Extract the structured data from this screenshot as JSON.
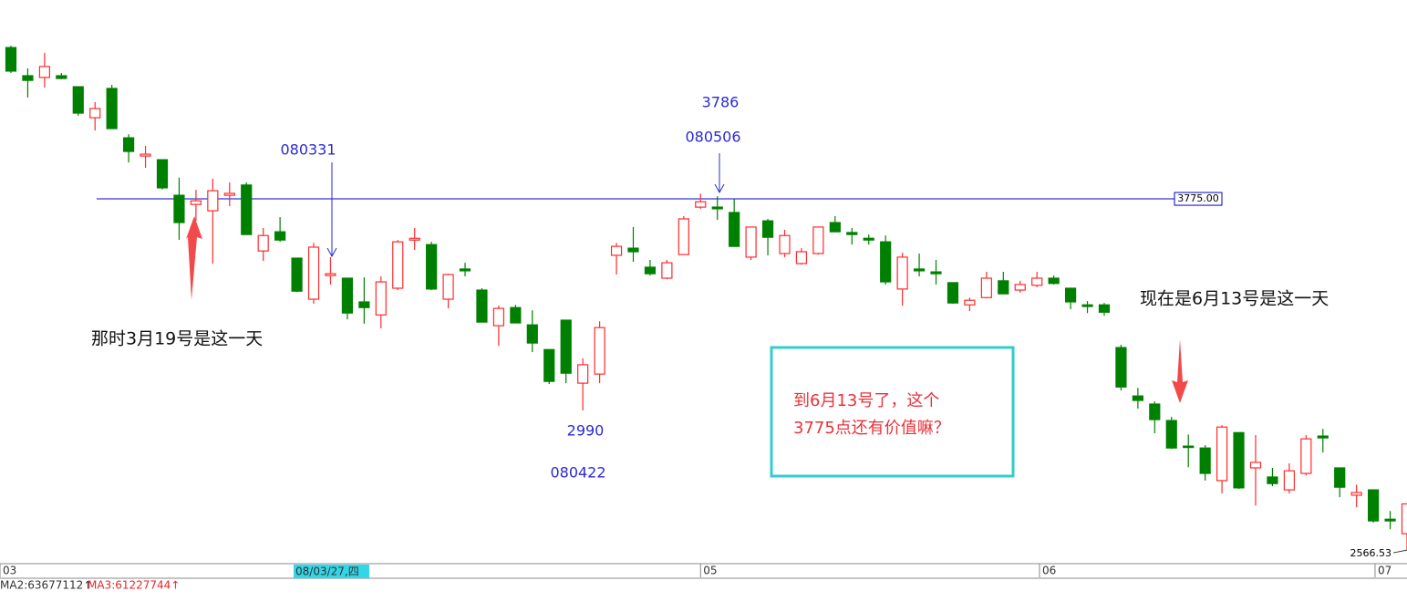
{
  "chart_data": {
    "type": "candlestick",
    "log_scale": true,
    "xlim": [
      -0.65,
      83
    ],
    "ylim": [
      2536,
      4697
    ],
    "xticks": [
      {
        "value": -0.65,
        "label": "03"
      },
      {
        "value": 41,
        "label": "05"
      },
      {
        "value": 61.15,
        "label": "06"
      },
      {
        "value": 81.1,
        "label": "07"
      }
    ],
    "up_color": "#ff2a2a",
    "down_color": "#008000",
    "open": [
      4458,
      4322,
      4314,
      4322,
      4270,
      4127,
      4262,
      4037,
      3957,
      3941,
      3790,
      3752,
      3726,
      3790,
      3833,
      3565,
      3641,
      3537,
      3381,
      3470,
      3460,
      3371,
      3323,
      3422,
      3608,
      3590,
      3381,
      3495,
      3415,
      3284,
      3350,
      3287,
      3199,
      3304,
      3083,
      3114,
      3548,
      3576,
      3502,
      3460,
      3551,
      3741,
      3741,
      3719,
      3541,
      3685,
      3555,
      3516,
      3555,
      3678,
      3638,
      3615,
      3601,
      3419,
      3495,
      3484,
      3443,
      3360,
      3387,
      3450,
      3415,
      3433,
      3460,
      3422,
      3360,
      3360,
      3206,
      3040,
      3013,
      2959,
      2877,
      2871,
      2770,
      2920,
      2809,
      2781,
      2742,
      2792,
      2909,
      2809,
      2726,
      2742,
      2655,
      2613
    ],
    "high": [
      4467,
      4357,
      4432,
      4335,
      4270,
      4199,
      4279,
      4053,
      4001,
      3941,
      3864,
      3813,
      3860,
      3844,
      3844,
      3656,
      3700,
      3537,
      3597,
      3541,
      3460,
      3463,
      3467,
      3608,
      3656,
      3601,
      3477,
      3519,
      3422,
      3357,
      3360,
      3340,
      3199,
      3304,
      3168,
      3300,
      3597,
      3660,
      3530,
      3530,
      3704,
      3797,
      3786,
      3775,
      3660,
      3693,
      3649,
      3576,
      3660,
      3704,
      3656,
      3630,
      3626,
      3558,
      3555,
      3530,
      3443,
      3387,
      3484,
      3484,
      3450,
      3484,
      3470,
      3422,
      3374,
      3367,
      3216,
      3067,
      3022,
      2971,
      2914,
      2880,
      2944,
      2920,
      2912,
      2809,
      2823,
      2912,
      2932,
      2809,
      2758,
      2742,
      2679,
      2700
    ],
    "low": [
      4335,
      4220,
      4266,
      4305,
      4136,
      4070,
      4078,
      3929,
      3906,
      3814,
      3609,
      3685,
      3516,
      3745,
      3630,
      3526,
      3601,
      3408,
      3364,
      3436,
      3307,
      3291,
      3274,
      3415,
      3569,
      3415,
      3347,
      3467,
      3297,
      3212,
      3294,
      3190,
      3080,
      3083,
      2992,
      3083,
      3474,
      3523,
      3470,
      3456,
      3551,
      3734,
      3689,
      3583,
      3530,
      3548,
      3541,
      3512,
      3551,
      3641,
      3590,
      3590,
      3436,
      3357,
      3467,
      3436,
      3364,
      3337,
      3384,
      3401,
      3405,
      3426,
      3436,
      3344,
      3330,
      3320,
      3058,
      2998,
      2918,
      2868,
      2811,
      2770,
      2731,
      2745,
      2695,
      2753,
      2731,
      2786,
      2857,
      2720,
      2690,
      2645,
      2626,
      2566.53
    ],
    "close": [
      4344,
      4300,
      4366,
      4309,
      4148,
      4169,
      4078,
      3977,
      3965,
      3821,
      3678,
      3767,
      3809,
      3798,
      3630,
      3626,
      3608,
      3411,
      3580,
      3477,
      3330,
      3350,
      3446,
      3601,
      3615,
      3419,
      3474,
      3488,
      3297,
      3347,
      3294,
      3222,
      3089,
      3117,
      3146,
      3277,
      3583,
      3562,
      3477,
      3519,
      3693,
      3763,
      3734,
      3583,
      3660,
      3619,
      3626,
      3562,
      3660,
      3641,
      3630,
      3608,
      3446,
      3541,
      3488,
      3477,
      3367,
      3377,
      3460,
      3401,
      3436,
      3460,
      3440,
      3371,
      3354,
      3333,
      3070,
      3025,
      2962,
      2871,
      2874,
      2792,
      2938,
      2748,
      2826,
      2761,
      2800,
      2900,
      2903,
      2750,
      2734,
      2650,
      2650,
      2700
    ],
    "reference_line": {
      "value": 3775,
      "label": "3775.00",
      "color": "#0000cc"
    },
    "low_label": {
      "value": 2566.53,
      "label": "2566.53"
    },
    "annotations": [
      "080331",
      "3786",
      "080506",
      "2990",
      "080422"
    ],
    "left_note": "那时3月19号是这一天",
    "right_note": "现在是6月13号是这一天",
    "box_text": [
      "到6月13号了，这个",
      "3775点还有价值嘛？"
    ],
    "cursor_label": "08/03/27,四",
    "indicators": [
      "MA2:63677112↑",
      "MA3:61227744↑"
    ]
  }
}
